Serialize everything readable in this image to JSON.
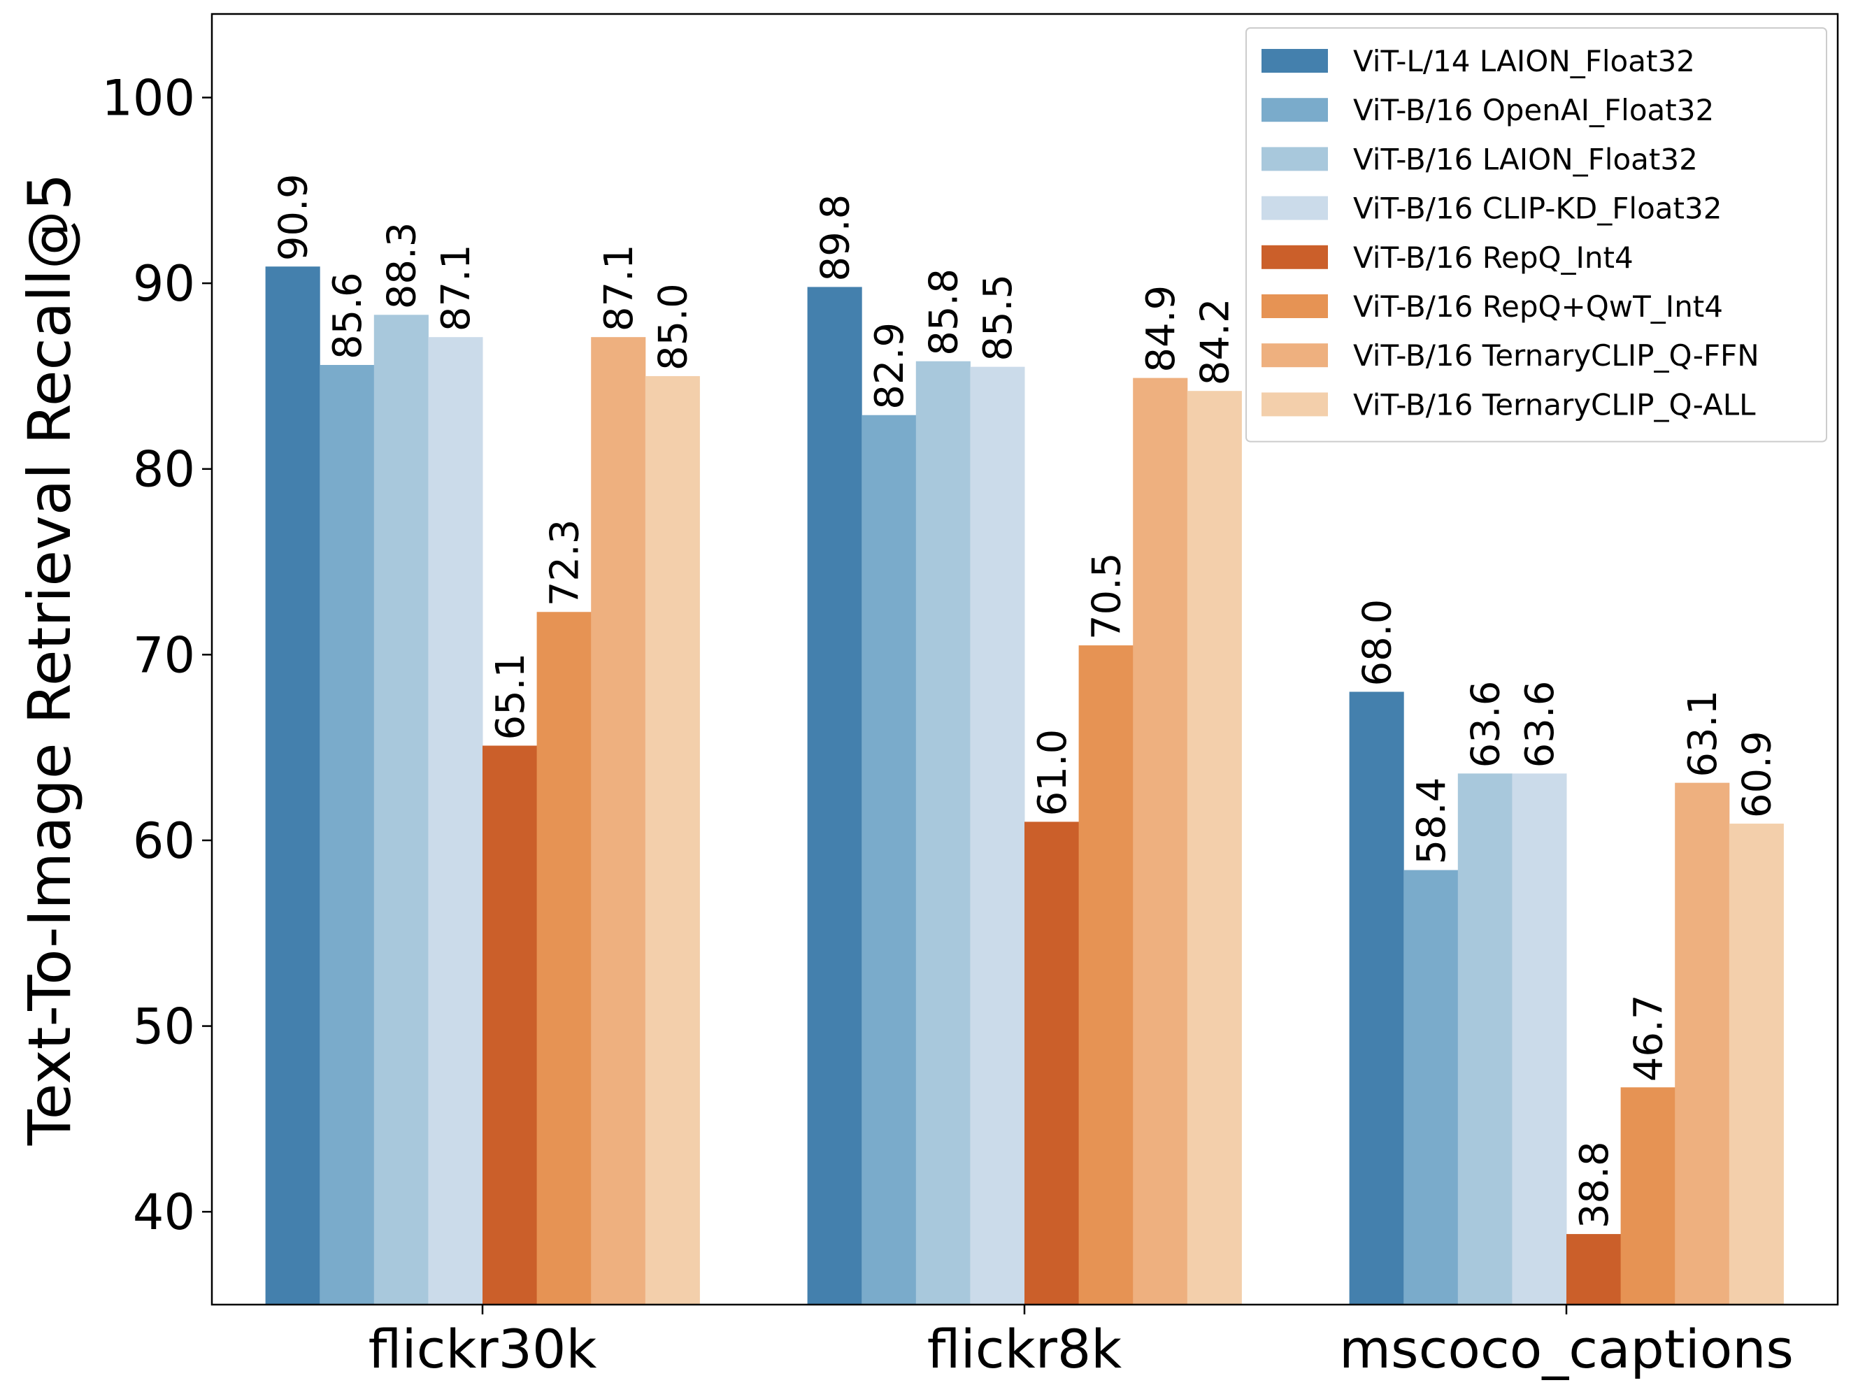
{
  "chart_data": {
    "type": "bar",
    "title": "",
    "xlabel": "",
    "ylabel": "Text-To-Image Retrieval Recall@5",
    "ylim": [
      35,
      104.5
    ],
    "yticks": [
      40,
      50,
      60,
      70,
      80,
      90,
      100
    ],
    "grid": false,
    "legend_position": "top-right",
    "categories": [
      "flickr30k",
      "flickr8k",
      "mscoco_captions"
    ],
    "series": [
      {
        "name": "ViT-L/14 LAION_Float32",
        "color": "#4480ad",
        "values": [
          90.9,
          89.8,
          68.0
        ],
        "labels": [
          "90.9",
          "89.8",
          "68.0"
        ]
      },
      {
        "name": "ViT-B/16 OpenAI_Float32",
        "color": "#7aabcb",
        "values": [
          85.6,
          82.9,
          58.4
        ],
        "labels": [
          "85.6",
          "82.9",
          "58.4"
        ]
      },
      {
        "name": "ViT-B/16 LAION_Float32",
        "color": "#a8c8dc",
        "values": [
          88.3,
          85.8,
          63.6
        ],
        "labels": [
          "88.3",
          "85.8",
          "63.6"
        ]
      },
      {
        "name": "ViT-B/16 CLIP-KD_Float32",
        "color": "#cbdbea",
        "values": [
          87.1,
          85.5,
          63.6
        ],
        "labels": [
          "87.1",
          "85.5",
          "63.6"
        ]
      },
      {
        "name": "ViT-B/16 RepQ_Int4",
        "color": "#cb5f2a",
        "values": [
          65.1,
          61.0,
          38.8
        ],
        "labels": [
          "65.1",
          "61.0",
          "38.8"
        ]
      },
      {
        "name": "ViT-B/16 RepQ+QwT_Int4",
        "color": "#e69354",
        "values": [
          72.3,
          70.5,
          46.7
        ],
        "labels": [
          "72.3",
          "70.5",
          "46.7"
        ]
      },
      {
        "name": "ViT-B/16 TernaryCLIP_Q-FFN",
        "color": "#eeb07f",
        "values": [
          87.1,
          84.9,
          63.1
        ],
        "labels": [
          "87.1",
          "84.9",
          "63.1"
        ]
      },
      {
        "name": "ViT-B/16 TernaryCLIP_Q-ALL",
        "color": "#f3cfab",
        "values": [
          85.0,
          84.2,
          60.9
        ],
        "labels": [
          "85.0",
          "84.2",
          "60.9"
        ]
      }
    ]
  }
}
